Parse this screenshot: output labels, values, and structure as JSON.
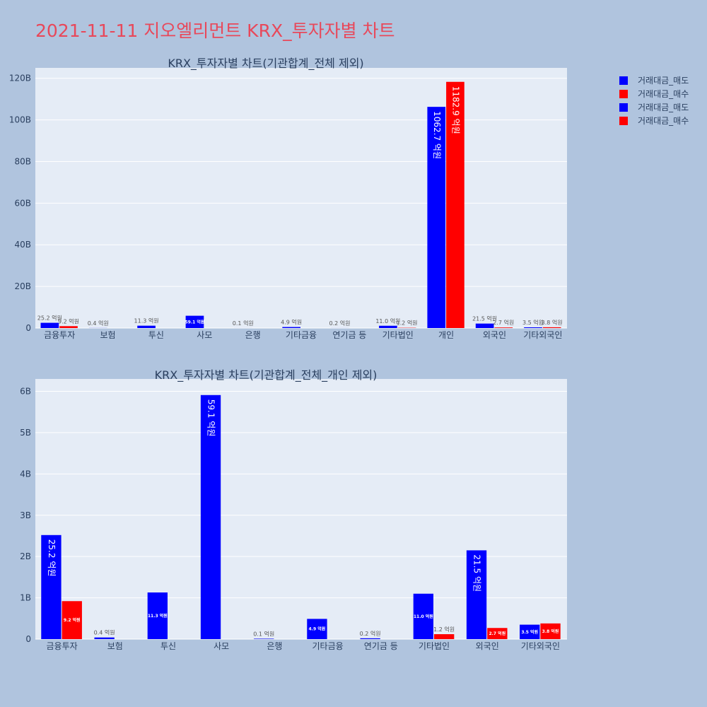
{
  "title": "2021-11-11 지오엘리먼트 KRX_투자자별 차트",
  "legend": [
    {
      "label": "거래대금_매도",
      "color": "#0000ff"
    },
    {
      "label": "거래대금_매수",
      "color": "#ff0000"
    },
    {
      "label": "거래대금_매도",
      "color": "#0000ff"
    },
    {
      "label": "거래대금_매수",
      "color": "#ff0000"
    }
  ],
  "chart_data": [
    {
      "type": "bar",
      "title": "KRX_투자자별 차트(기관합계_전체 제외)",
      "categories": [
        "금융투자",
        "보험",
        "투신",
        "사모",
        "은행",
        "기타금융",
        "연기금 등",
        "기타법인",
        "개인",
        "외국인",
        "기타외국인"
      ],
      "series": [
        {
          "name": "거래대금_매도",
          "color": "#0000ff",
          "values": [
            2.52,
            0.04,
            1.13,
            5.91,
            0.01,
            0.49,
            0.02,
            1.1,
            106.27,
            2.15,
            0.35
          ],
          "labels": [
            "25.2 억원",
            "0.4 억원",
            "11.3 억원",
            "59.1 억원",
            "0.1 억원",
            "4.9 억원",
            "0.2 억원",
            "11.0 억원",
            "1062.7 억원",
            "21.5 억원",
            "3.5 억원"
          ]
        },
        {
          "name": "거래대금_매수",
          "color": "#ff0000",
          "values": [
            0.92,
            0,
            0,
            0,
            0,
            0,
            0,
            0.12,
            118.29,
            0.27,
            0.38
          ],
          "labels": [
            "9.2 억원",
            "",
            "",
            "",
            "",
            "",
            "",
            "1.2 억원",
            "1182.9 억원",
            "2.7 억원",
            "3.8 억원"
          ]
        }
      ],
      "ylim": [
        0,
        125
      ],
      "yticks": [
        0,
        20,
        40,
        60,
        80,
        100,
        120
      ],
      "ytick_labels": [
        "0",
        "20B",
        "40B",
        "60B",
        "80B",
        "100B",
        "120B"
      ],
      "grid": true
    },
    {
      "type": "bar",
      "title": "KRX_투자자별 차트(기관합계_전체_개인 제외)",
      "categories": [
        "금융투자",
        "보험",
        "투신",
        "사모",
        "은행",
        "기타금융",
        "연기금 등",
        "기타법인",
        "외국인",
        "기타외국인"
      ],
      "series": [
        {
          "name": "거래대금_매도",
          "color": "#0000ff",
          "values": [
            2.52,
            0.04,
            1.13,
            5.91,
            0.01,
            0.49,
            0.02,
            1.1,
            2.15,
            0.35
          ],
          "labels": [
            "25.2 억원",
            "0.4 억원",
            "11.3 억원",
            "59.1 억원",
            "0.1 억원",
            "4.9 억원",
            "0.2 억원",
            "11.0 억원",
            "21.5 억원",
            "3.5 억원"
          ]
        },
        {
          "name": "거래대금_매수",
          "color": "#ff0000",
          "values": [
            0.92,
            0,
            0,
            0,
            0,
            0,
            0,
            0.12,
            0.27,
            0.38
          ],
          "labels": [
            "9.2 억원",
            "",
            "",
            "",
            "",
            "",
            "",
            "1.2 억원",
            "2.7 억원",
            "3.8 억원"
          ]
        }
      ],
      "ylim": [
        0,
        6.3
      ],
      "yticks": [
        0,
        1,
        2,
        3,
        4,
        5,
        6
      ],
      "ytick_labels": [
        "0",
        "1B",
        "2B",
        "3B",
        "4B",
        "5B",
        "6B"
      ],
      "grid": true
    }
  ]
}
